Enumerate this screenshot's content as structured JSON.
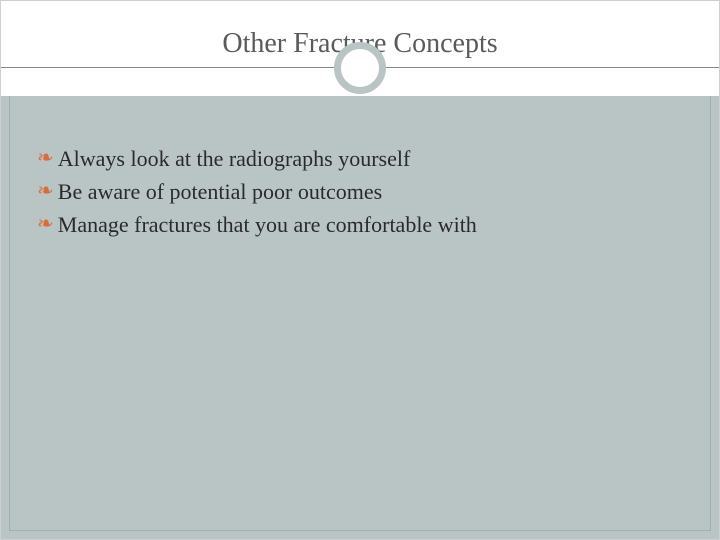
{
  "slide": {
    "title": "Other Fracture Concepts",
    "bullets": [
      "Always look at the radiographs yourself",
      "Be aware of potential poor outcomes",
      "Manage fractures that you are comfortable with"
    ]
  },
  "style": {
    "background_color": "#ffffff",
    "content_background": "#b9c5c5",
    "title_color": "#5a5a5a",
    "title_fontsize": 28,
    "bullet_color": "#2a2a2a",
    "bullet_fontsize": 22,
    "bullet_marker_color": "#d96c3a",
    "bullet_marker": "❧",
    "divider_color": "#888888",
    "circle_border_color": "#b9c5c5",
    "circle_border_width": 7
  }
}
